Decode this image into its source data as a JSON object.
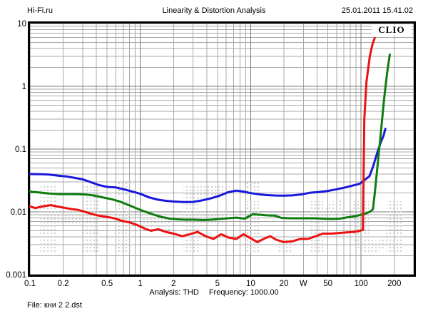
{
  "header": {
    "site": "Hi-Fi.ru",
    "datetime": "25.01.2011 15.41.02"
  },
  "brand": {
    "label": "CLIO"
  },
  "watermark": {
    "text": "Hi-Fi.ru",
    "dot_color": "#d2d2d2"
  },
  "footer": {
    "analysis": "Analysis: THD",
    "frequency": "Frequency: 1000.00",
    "file": "File: кни 2 2.dst"
  },
  "chart_data": {
    "type": "line",
    "title": "Linearity & Distortion Analysis",
    "xlabel": "W",
    "ylabel": "",
    "x_scale": "log",
    "y_scale": "log",
    "xlim": [
      0.1,
      300
    ],
    "ylim": [
      0.001,
      10
    ],
    "grid": "log major+minor",
    "legend": "none",
    "x_ticks": {
      "values": [
        0.1,
        0.2,
        0.5,
        1,
        2,
        5,
        10,
        20,
        30,
        50,
        100,
        200
      ],
      "labels": [
        "0.1",
        "0.2",
        "0.5",
        "1",
        "2",
        "5",
        "10",
        "20",
        "W",
        "50",
        "100",
        "200"
      ]
    },
    "y_ticks": {
      "values": [
        10,
        1,
        0.1,
        0.01,
        0.001
      ],
      "labels": [
        "10",
        "1",
        "0.1",
        "0.01",
        "0.001"
      ]
    },
    "series": [
      {
        "name": "blue-curve",
        "color": "#1818dd",
        "points": [
          [
            0.1,
            0.04
          ],
          [
            0.13,
            0.0398
          ],
          [
            0.15,
            0.0392
          ],
          [
            0.18,
            0.0378
          ],
          [
            0.21,
            0.0368
          ],
          [
            0.25,
            0.035
          ],
          [
            0.3,
            0.033
          ],
          [
            0.35,
            0.03
          ],
          [
            0.42,
            0.0268
          ],
          [
            0.5,
            0.025
          ],
          [
            0.6,
            0.0245
          ],
          [
            0.7,
            0.023
          ],
          [
            0.85,
            0.021
          ],
          [
            1.0,
            0.0194
          ],
          [
            1.2,
            0.017
          ],
          [
            1.45,
            0.0156
          ],
          [
            1.7,
            0.015
          ],
          [
            2.0,
            0.0146
          ],
          [
            2.5,
            0.0143
          ],
          [
            3.0,
            0.0144
          ],
          [
            3.6,
            0.0152
          ],
          [
            4.3,
            0.0163
          ],
          [
            5.2,
            0.018
          ],
          [
            6.2,
            0.0205
          ],
          [
            7.4,
            0.0218
          ],
          [
            8.5,
            0.0211
          ],
          [
            10,
            0.0199
          ],
          [
            12,
            0.019
          ],
          [
            14,
            0.0185
          ],
          [
            17,
            0.0182
          ],
          [
            20,
            0.0181
          ],
          [
            24,
            0.0183
          ],
          [
            29,
            0.019
          ],
          [
            34,
            0.0201
          ],
          [
            41,
            0.0207
          ],
          [
            49,
            0.0214
          ],
          [
            58,
            0.0226
          ],
          [
            69,
            0.0241
          ],
          [
            82,
            0.0259
          ],
          [
            97,
            0.028
          ],
          [
            105,
            0.031
          ],
          [
            113,
            0.0345
          ],
          [
            119,
            0.037
          ],
          [
            128,
            0.052
          ],
          [
            138,
            0.08
          ],
          [
            150,
            0.125
          ],
          [
            160,
            0.165
          ],
          [
            166,
            0.21
          ]
        ]
      },
      {
        "name": "green-curve",
        "color": "#0e7d0e",
        "points": [
          [
            0.1,
            0.021
          ],
          [
            0.12,
            0.0204
          ],
          [
            0.15,
            0.0196
          ],
          [
            0.18,
            0.0192
          ],
          [
            0.22,
            0.0192
          ],
          [
            0.27,
            0.0191
          ],
          [
            0.32,
            0.0189
          ],
          [
            0.38,
            0.0182
          ],
          [
            0.45,
            0.0171
          ],
          [
            0.55,
            0.0159
          ],
          [
            0.65,
            0.0146
          ],
          [
            0.78,
            0.0129
          ],
          [
            0.92,
            0.0114
          ],
          [
            1.1,
            0.0101
          ],
          [
            1.3,
            0.0091
          ],
          [
            1.55,
            0.0083
          ],
          [
            1.85,
            0.0078
          ],
          [
            2.2,
            0.0076
          ],
          [
            2.6,
            0.0075
          ],
          [
            3.1,
            0.0075
          ],
          [
            3.7,
            0.0074
          ],
          [
            4.4,
            0.0075
          ],
          [
            5.2,
            0.0077
          ],
          [
            6.2,
            0.0079
          ],
          [
            7.4,
            0.0081
          ],
          [
            8.8,
            0.0078
          ],
          [
            10.5,
            0.0092
          ],
          [
            12,
            0.009
          ],
          [
            14,
            0.0088
          ],
          [
            16.5,
            0.0087
          ],
          [
            19,
            0.008
          ],
          [
            23,
            0.0079
          ],
          [
            27,
            0.0079
          ],
          [
            32,
            0.0079
          ],
          [
            38,
            0.0079
          ],
          [
            45,
            0.0078
          ],
          [
            54,
            0.0077
          ],
          [
            64,
            0.0078
          ],
          [
            76,
            0.0082
          ],
          [
            90,
            0.0086
          ],
          [
            100,
            0.009
          ],
          [
            110,
            0.0094
          ],
          [
            120,
            0.01
          ],
          [
            128,
            0.011
          ],
          [
            134,
            0.022
          ],
          [
            141,
            0.055
          ],
          [
            150,
            0.16
          ],
          [
            162,
            0.65
          ],
          [
            172,
            1.6
          ],
          [
            182,
            3.2
          ]
        ]
      },
      {
        "name": "red-curve",
        "color": "#ee1111",
        "points": [
          [
            0.1,
            0.0122
          ],
          [
            0.112,
            0.0115
          ],
          [
            0.125,
            0.012
          ],
          [
            0.14,
            0.0125
          ],
          [
            0.155,
            0.0128
          ],
          [
            0.175,
            0.0122
          ],
          [
            0.2,
            0.0117
          ],
          [
            0.23,
            0.0112
          ],
          [
            0.27,
            0.0108
          ],
          [
            0.31,
            0.0101
          ],
          [
            0.36,
            0.0093
          ],
          [
            0.42,
            0.0087
          ],
          [
            0.5,
            0.0083
          ],
          [
            0.58,
            0.0079
          ],
          [
            0.68,
            0.0072
          ],
          [
            0.8,
            0.0068
          ],
          [
            0.93,
            0.0062
          ],
          [
            1.1,
            0.0054
          ],
          [
            1.25,
            0.005
          ],
          [
            1.45,
            0.0053
          ],
          [
            1.7,
            0.0048
          ],
          [
            2.0,
            0.0045
          ],
          [
            2.4,
            0.0041
          ],
          [
            2.8,
            0.0044
          ],
          [
            3.3,
            0.0048
          ],
          [
            3.9,
            0.0041
          ],
          [
            4.6,
            0.0037
          ],
          [
            5.4,
            0.0044
          ],
          [
            6.3,
            0.0039
          ],
          [
            7.4,
            0.0037
          ],
          [
            8.6,
            0.0044
          ],
          [
            10,
            0.0038
          ],
          [
            11.5,
            0.0033
          ],
          [
            13.5,
            0.0038
          ],
          [
            15,
            0.0041
          ],
          [
            17,
            0.0036
          ],
          [
            20,
            0.0033
          ],
          [
            24,
            0.0034
          ],
          [
            28,
            0.0037
          ],
          [
            33,
            0.0037
          ],
          [
            39,
            0.0041
          ],
          [
            45,
            0.0045
          ],
          [
            53,
            0.0045
          ],
          [
            62,
            0.0046
          ],
          [
            73,
            0.0047
          ],
          [
            86,
            0.0048
          ],
          [
            98,
            0.005
          ],
          [
            104,
            0.0052
          ],
          [
            107,
            0.3
          ],
          [
            112,
            1.2
          ],
          [
            120,
            3.0
          ],
          [
            127,
            4.7
          ],
          [
            133,
            5.9
          ]
        ]
      }
    ],
    "style": {
      "minor_grid_color": "#a8a8a8",
      "major_grid_color": "#787878",
      "frame_color": "#000000",
      "line_width": 3
    }
  }
}
